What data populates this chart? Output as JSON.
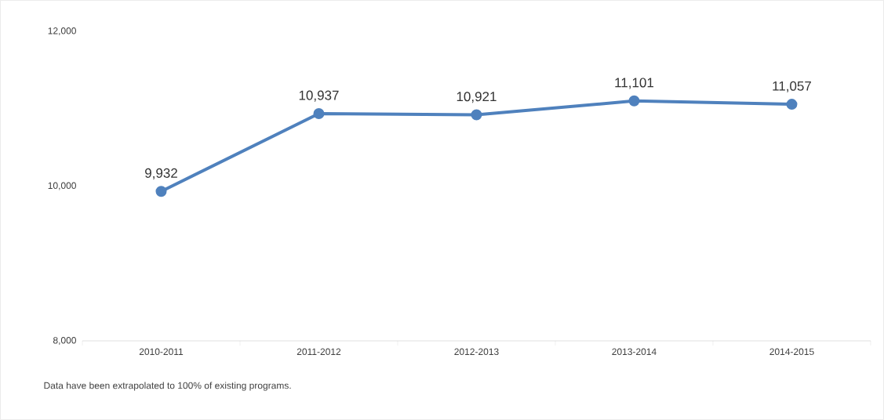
{
  "chart_data": {
    "type": "line",
    "categories": [
      "2010-2011",
      "2011-2012",
      "2012-2013",
      "2013-2014",
      "2014-2015"
    ],
    "values": [
      9932,
      10937,
      10921,
      11101,
      11057
    ],
    "value_labels": [
      "9,932",
      "10,937",
      "10,921",
      "11,101",
      "11,057"
    ],
    "color": "#4f81bd",
    "marker": "circle",
    "line_style": "solid",
    "ylim": [
      8000,
      12000
    ],
    "yticks": [
      {
        "value": 8000,
        "label": "8,000"
      },
      {
        "value": 10000,
        "label": "10,000"
      },
      {
        "value": 12000,
        "label": "12,000"
      }
    ],
    "annotations": [
      "Data have been extrapolated to 100% of existing programs."
    ]
  }
}
